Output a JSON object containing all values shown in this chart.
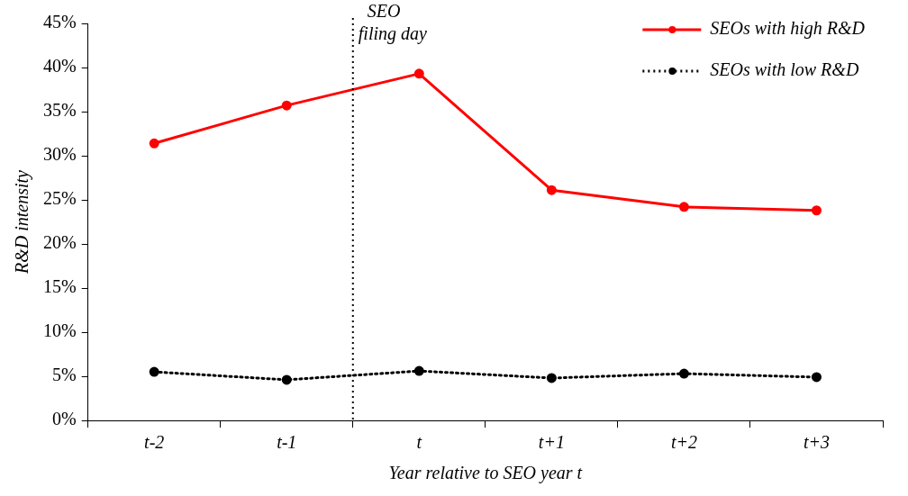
{
  "chart_data": {
    "type": "line",
    "xlabel": "Year relative to SEO year t",
    "ylabel": "R&D intensity",
    "categories": [
      "t-2",
      "t-1",
      "t",
      "t+1",
      "t+2",
      "t+3"
    ],
    "series": [
      {
        "name": "SEOs with high R&D",
        "color": "#ff0000",
        "line_style": "solid",
        "values": [
          31.4,
          35.7,
          39.3,
          26.1,
          24.2,
          23.8
        ]
      },
      {
        "name": "SEOs with low R&D",
        "color": "#000000",
        "line_style": "dotted",
        "values": [
          5.5,
          4.6,
          5.6,
          4.8,
          5.3,
          4.9
        ]
      }
    ],
    "ylim": [
      0,
      45
    ],
    "yticks": [
      {
        "value": 0,
        "label": "0%"
      },
      {
        "value": 5,
        "label": "5%"
      },
      {
        "value": 10,
        "label": "10%"
      },
      {
        "value": 15,
        "label": "15%"
      },
      {
        "value": 20,
        "label": "20%"
      },
      {
        "value": 25,
        "label": "25%"
      },
      {
        "value": 30,
        "label": "30%"
      },
      {
        "value": 35,
        "label": "35%"
      },
      {
        "value": 40,
        "label": "40%"
      },
      {
        "value": 45,
        "label": "45%"
      }
    ],
    "annotations": [
      "SEO filing day"
    ],
    "grid": false,
    "legend": "top right",
    "marker": "circle"
  }
}
